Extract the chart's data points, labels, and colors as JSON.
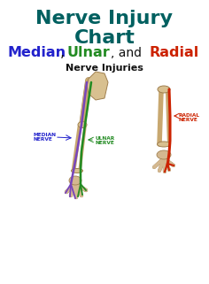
{
  "title_line1": "Nerve Injury",
  "title_line2": "Chart",
  "title_color": "#006060",
  "bg_color": "#FFFFFF",
  "subtitle2": "Nerve Injuries",
  "subtitle2_color": "#111111",
  "median_label": "MEDIAN\nNERVE",
  "median_label_color": "#2222CC",
  "ulnar_label": "ULNAR\nNERVE",
  "ulnar_label_color": "#228B22",
  "radial_label": "RADIAL\nNERVE",
  "radial_label_color": "#CC2200",
  "bone_color": "#C8A870",
  "bone_edge": "#A08050",
  "skin_color": "#D4B890"
}
